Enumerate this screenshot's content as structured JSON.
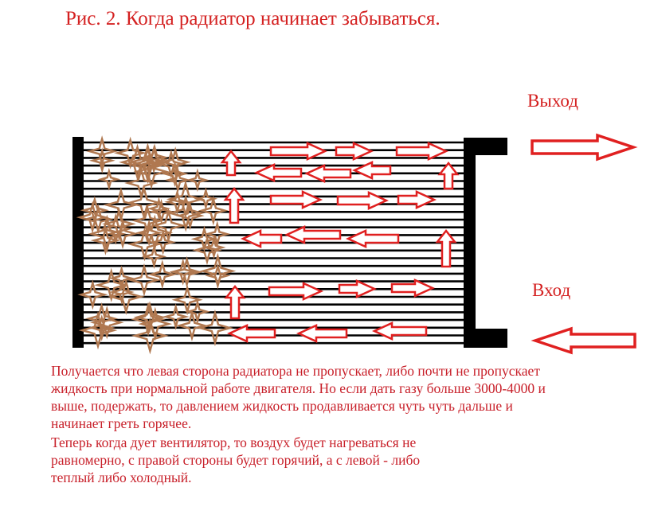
{
  "title": "Рис. 2. Когда радиатор начинает забываться.",
  "labels": {
    "outlet": "Выход",
    "inlet": "Вход"
  },
  "paragraphs": [
    "Получается что левая сторона радиатора не пропускает, либо почти не пропускает жидкость при нормальной работе двигателя. Но если дать газу больше 3000-4000 и выше, подержать, то давлением  жидкость продавливается чуть чуть дальше и начинает греть горячее.",
    "Теперь когда дует вентилятор, то воздух будет нагреваться не равномерно, с правой стороны будет горячий, а с левой - либо теплый либо холодный."
  ],
  "colors": {
    "text": "#d42020",
    "arrow": "#e02020",
    "deposit": "#b07850",
    "radiator": "#000000"
  }
}
